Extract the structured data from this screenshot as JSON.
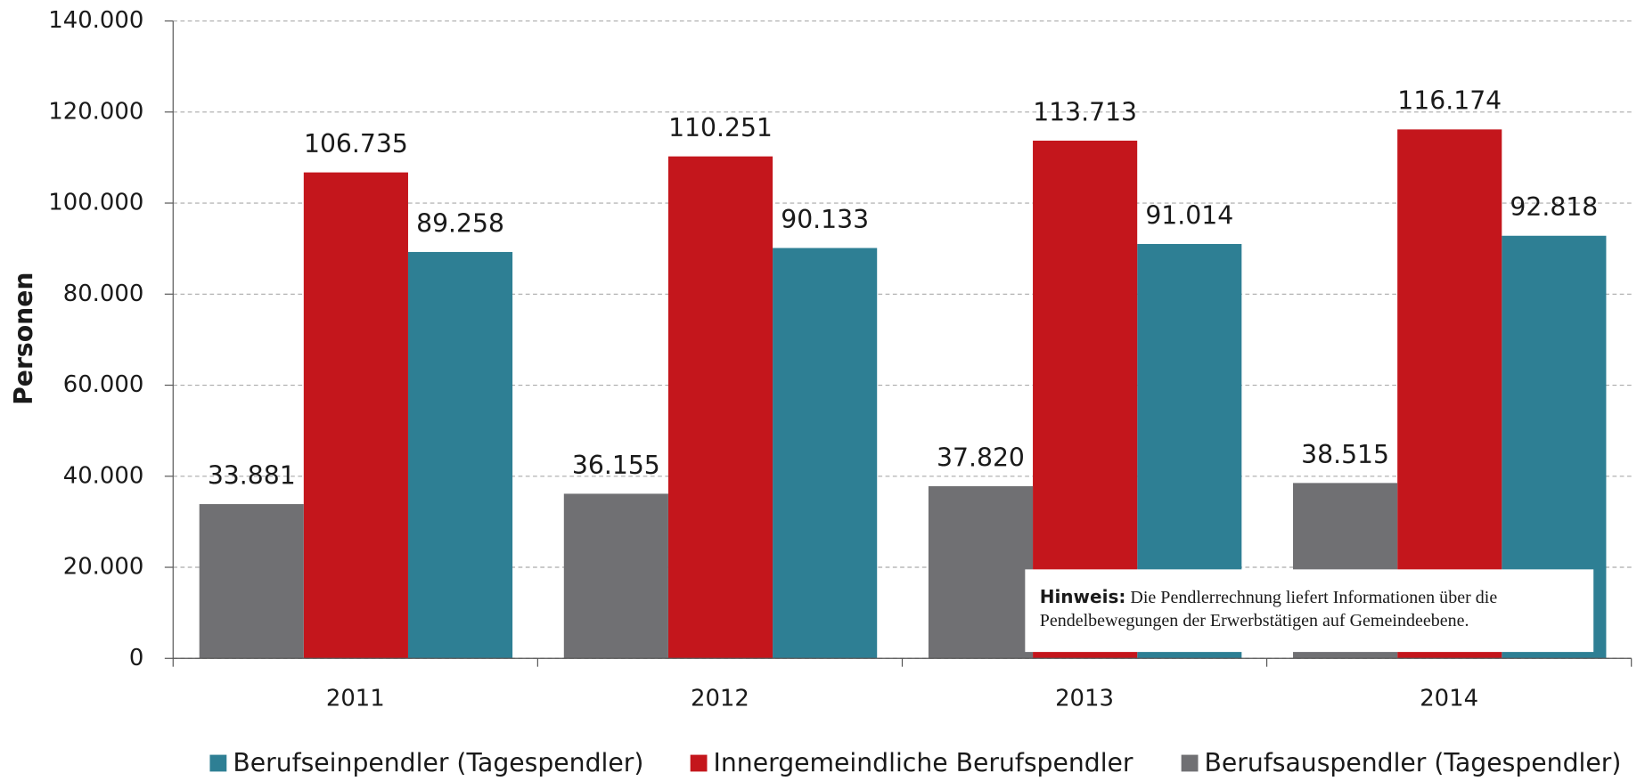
{
  "chart_data": {
    "type": "bar",
    "y_label": "Personen",
    "categories": [
      "2011",
      "2012",
      "2013",
      "2014"
    ],
    "series": [
      {
        "name": "Berufseinpendler (Tagespendler)",
        "color": "#2e7f94",
        "values": [
          89258,
          90133,
          91014,
          92818
        ],
        "value_labels": [
          "89.258",
          "90.133",
          "91.014",
          "92.818"
        ]
      },
      {
        "name": "Innergemeindliche Berufspendler",
        "color": "#c4161c",
        "values": [
          106735,
          110251,
          113713,
          116174
        ],
        "value_labels": [
          "106.735",
          "110.251",
          "113.713",
          "116.174"
        ]
      },
      {
        "name": "Berufsauspendler (Tagespendler)",
        "color": "#707073",
        "values": [
          33881,
          36155,
          37820,
          38515
        ],
        "value_labels": [
          "33.881",
          "36.155",
          "37.820",
          "38.515"
        ]
      }
    ],
    "ylim": [
      0,
      140000
    ],
    "yticks": [
      0,
      {
        "value": 20000,
        "label": "20.000"
      },
      {
        "value": 40000,
        "label": "40.000"
      },
      {
        "value": 60000,
        "label": "60.000"
      },
      {
        "value": 80000,
        "label": "80.000"
      },
      {
        "value": 100000,
        "label": "100.000"
      },
      {
        "value": 120000,
        "label": "120.000"
      },
      {
        "value": 140000,
        "label": "140.000"
      }
    ],
    "grid": true,
    "legend": "bottom",
    "annotation": {
      "label": "Hinweis:",
      "text": "Die Pendlerrechnung liefert Informationen über die Pendelbewegungen der Erwerbstätigen auf Gemeindeebene."
    }
  }
}
